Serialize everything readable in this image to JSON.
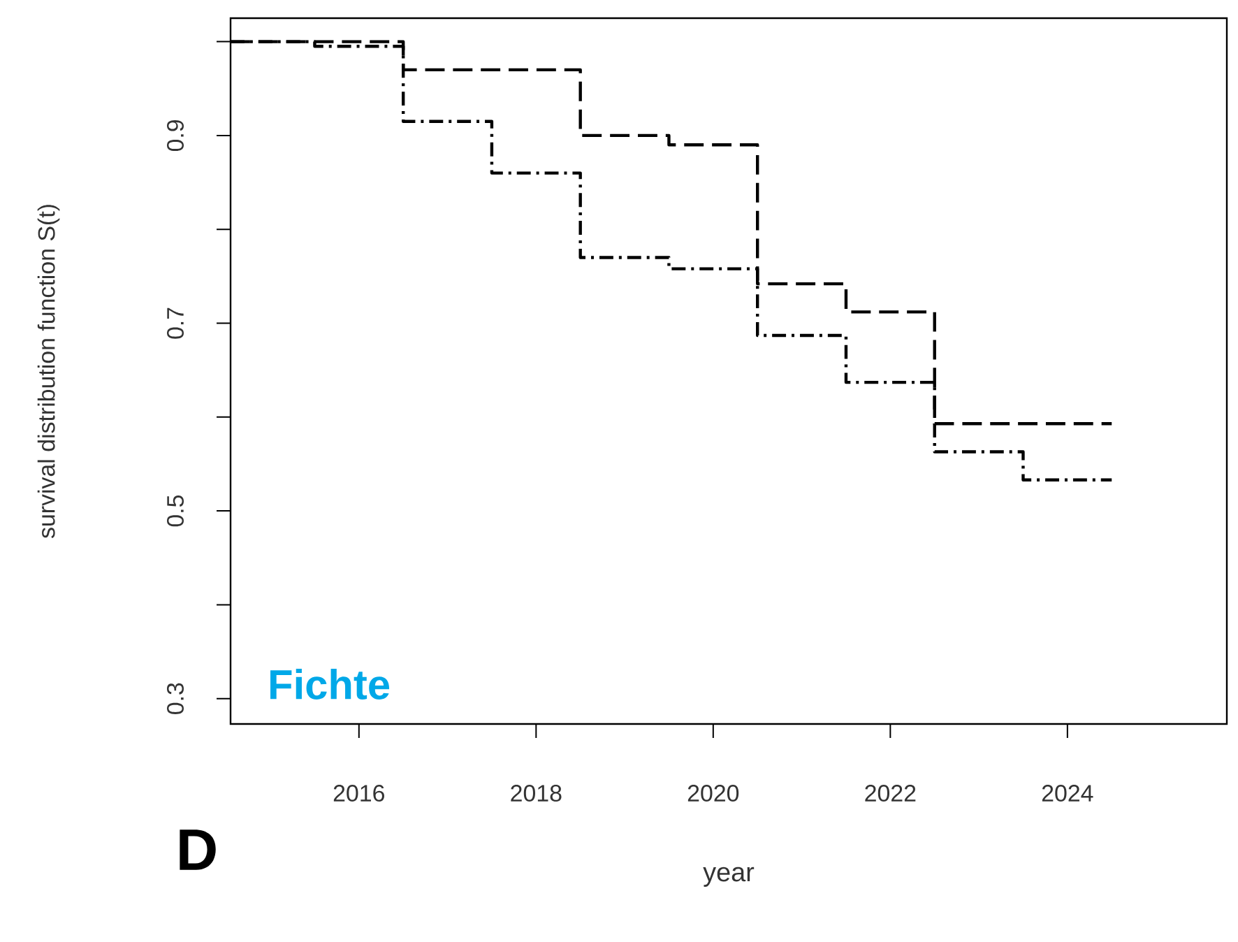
{
  "chart_data": {
    "type": "step",
    "xlabel": "year",
    "ylabel": "survival distribution function S(t)",
    "annotations": [
      "Fichte",
      "D"
    ],
    "xlim": [
      2014.55,
      2025.8
    ],
    "ylim": [
      0.273,
      1.025
    ],
    "xticks": [
      2016,
      2018,
      2020,
      2022,
      2024
    ],
    "yticks": [
      0.3,
      {
        "value": 0.4,
        "label": null
      },
      0.5,
      {
        "value": 0.6,
        "label": null
      },
      0.7,
      {
        "value": 0.8,
        "label": null
      },
      0.9,
      {
        "value": 1.0,
        "label": null
      }
    ],
    "series": [
      {
        "color": "#000000",
        "line_style": "dashed",
        "x": [
          2014.55,
          2016.5,
          2018.5,
          2019.5,
          2020.5,
          2021.5,
          2022.5,
          2024.5
        ],
        "values": [
          1.0,
          0.97,
          0.9,
          0.89,
          0.742,
          0.712,
          0.593,
          0.593
        ]
      },
      {
        "color": "#000000",
        "line_style": "dashdot",
        "x": [
          2014.55,
          2015.5,
          2016.5,
          2017.5,
          2018.5,
          2019.5,
          2020.5,
          2021.5,
          2022.5,
          2023.5,
          2024.5
        ],
        "values": [
          1.0,
          0.995,
          0.915,
          0.86,
          0.77,
          0.758,
          0.687,
          0.637,
          0.563,
          0.533,
          0.533
        ]
      }
    ]
  }
}
